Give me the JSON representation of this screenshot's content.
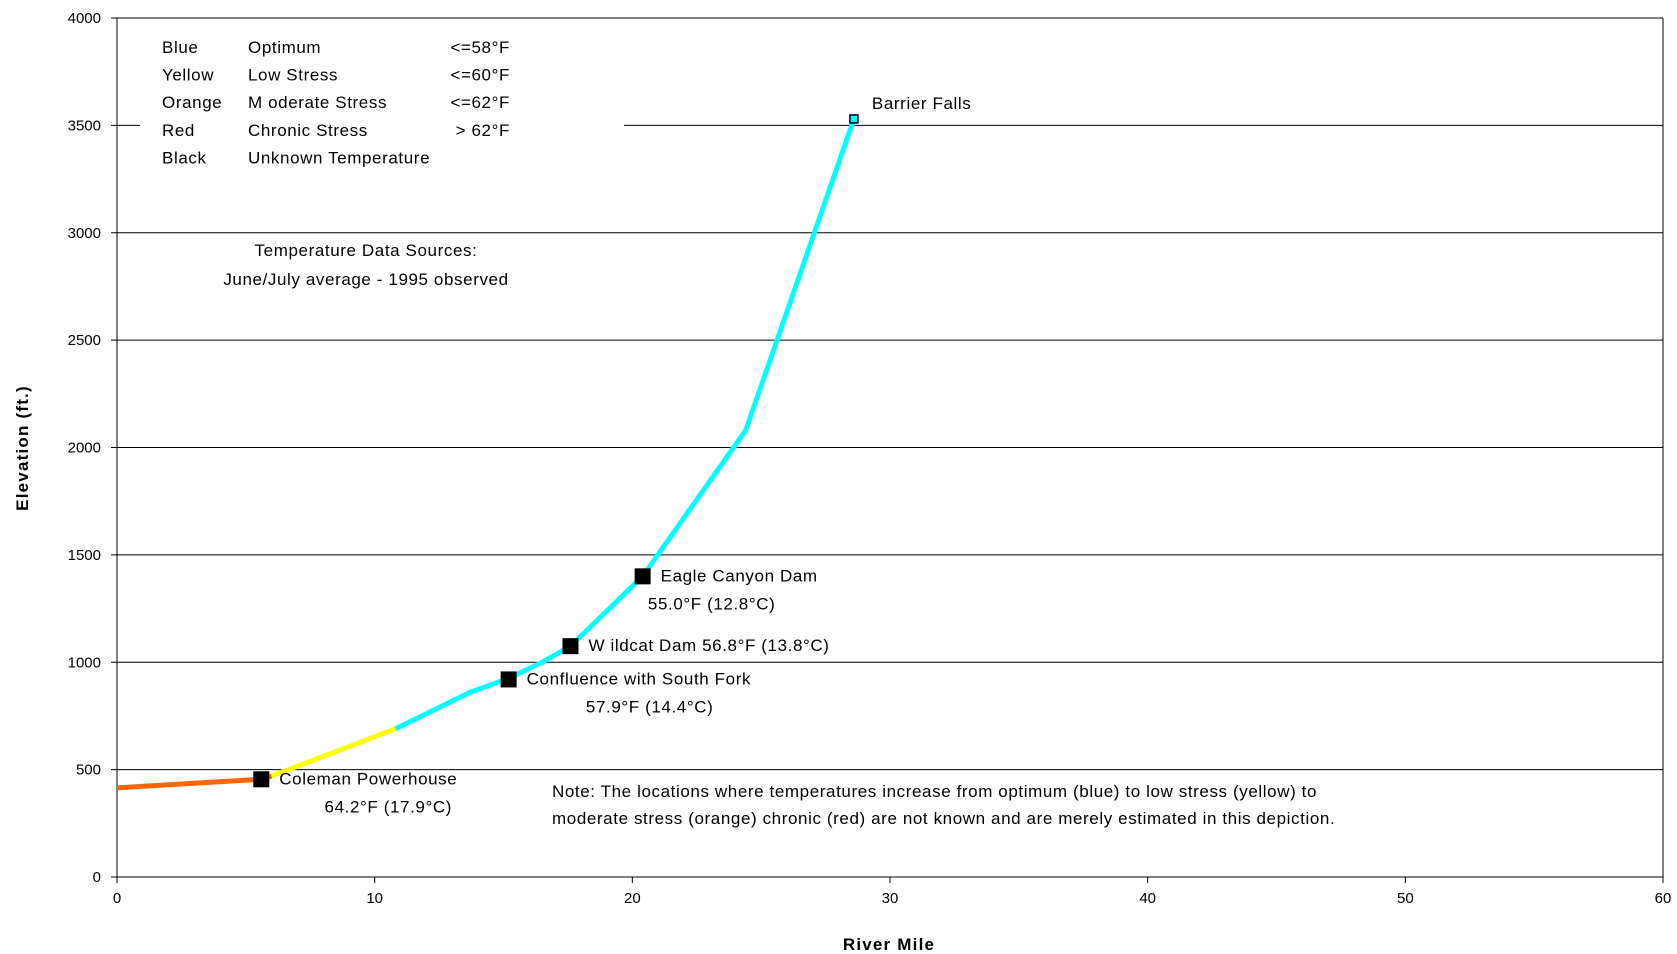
{
  "chart_data": {
    "type": "line",
    "xlabel": "River Mile",
    "ylabel": "Elevation (ft.)",
    "xlim": [
      0,
      60
    ],
    "ylim": [
      0,
      4000
    ],
    "xticks": [
      0,
      10,
      20,
      30,
      40,
      50,
      60
    ],
    "yticks": [
      0,
      500,
      1000,
      1500,
      2000,
      2500,
      3000,
      3500,
      4000
    ],
    "grid": "horizontal",
    "segments": [
      {
        "color": "#ff6600",
        "points": [
          [
            0,
            415
          ],
          [
            5.6,
            455
          ],
          [
            6.0,
            470
          ]
        ]
      },
      {
        "color": "#ffff00",
        "points": [
          [
            6.0,
            470
          ],
          [
            10.8,
            690
          ]
        ]
      },
      {
        "color": "#00ffff",
        "points": [
          [
            10.8,
            690
          ],
          [
            13.7,
            860
          ],
          [
            15.2,
            925
          ],
          [
            16.5,
            1000
          ],
          [
            17.6,
            1075
          ],
          [
            20.4,
            1400
          ],
          [
            24.4,
            2080
          ],
          [
            28.6,
            3530
          ]
        ]
      }
    ],
    "markers": [
      {
        "x": 5.6,
        "y": 455,
        "label": "Coleman Powerhouse",
        "temp": "64.2°F (17.9°C)"
      },
      {
        "x": 15.2,
        "y": 920,
        "label": "Confluence with South Fork",
        "temp": "57.9°F (14.4°C)"
      },
      {
        "x": 17.6,
        "y": 1075,
        "label": "W ildcat Dam 56.8°F (13.8°C)",
        "temp": ""
      },
      {
        "x": 20.4,
        "y": 1400,
        "label": "Eagle Canyon Dam",
        "temp": "55.0°F (12.8°C)"
      }
    ],
    "endpoint": {
      "x": 28.6,
      "y": 3530,
      "label": "Barrier Falls"
    },
    "legend": {
      "placement": "top-left",
      "rows": [
        {
          "color_name": "Blue",
          "meaning": "Optimum",
          "range": "<=58°F"
        },
        {
          "color_name": "Yellow",
          "meaning": " Low Stress",
          "range": "<=60°F"
        },
        {
          "color_name": "Orange",
          "meaning": "M oderate Stress",
          "range": "<=62°F"
        },
        {
          "color_name": "Red",
          "meaning": "Chronic Stress",
          "range": "> 62°F"
        },
        {
          "color_name": "Black",
          "meaning": "Unknown Temperature",
          "range": ""
        }
      ]
    },
    "sources": [
      "Temperature Data Sources:",
      "June/July average - 1995 observed"
    ],
    "note": [
      "Note:  The locations where temperatures increase from optimum (blue) to low stress (yellow) to",
      "moderate stress (orange) chronic (red) are not known and are merely estimated in this depiction."
    ]
  }
}
